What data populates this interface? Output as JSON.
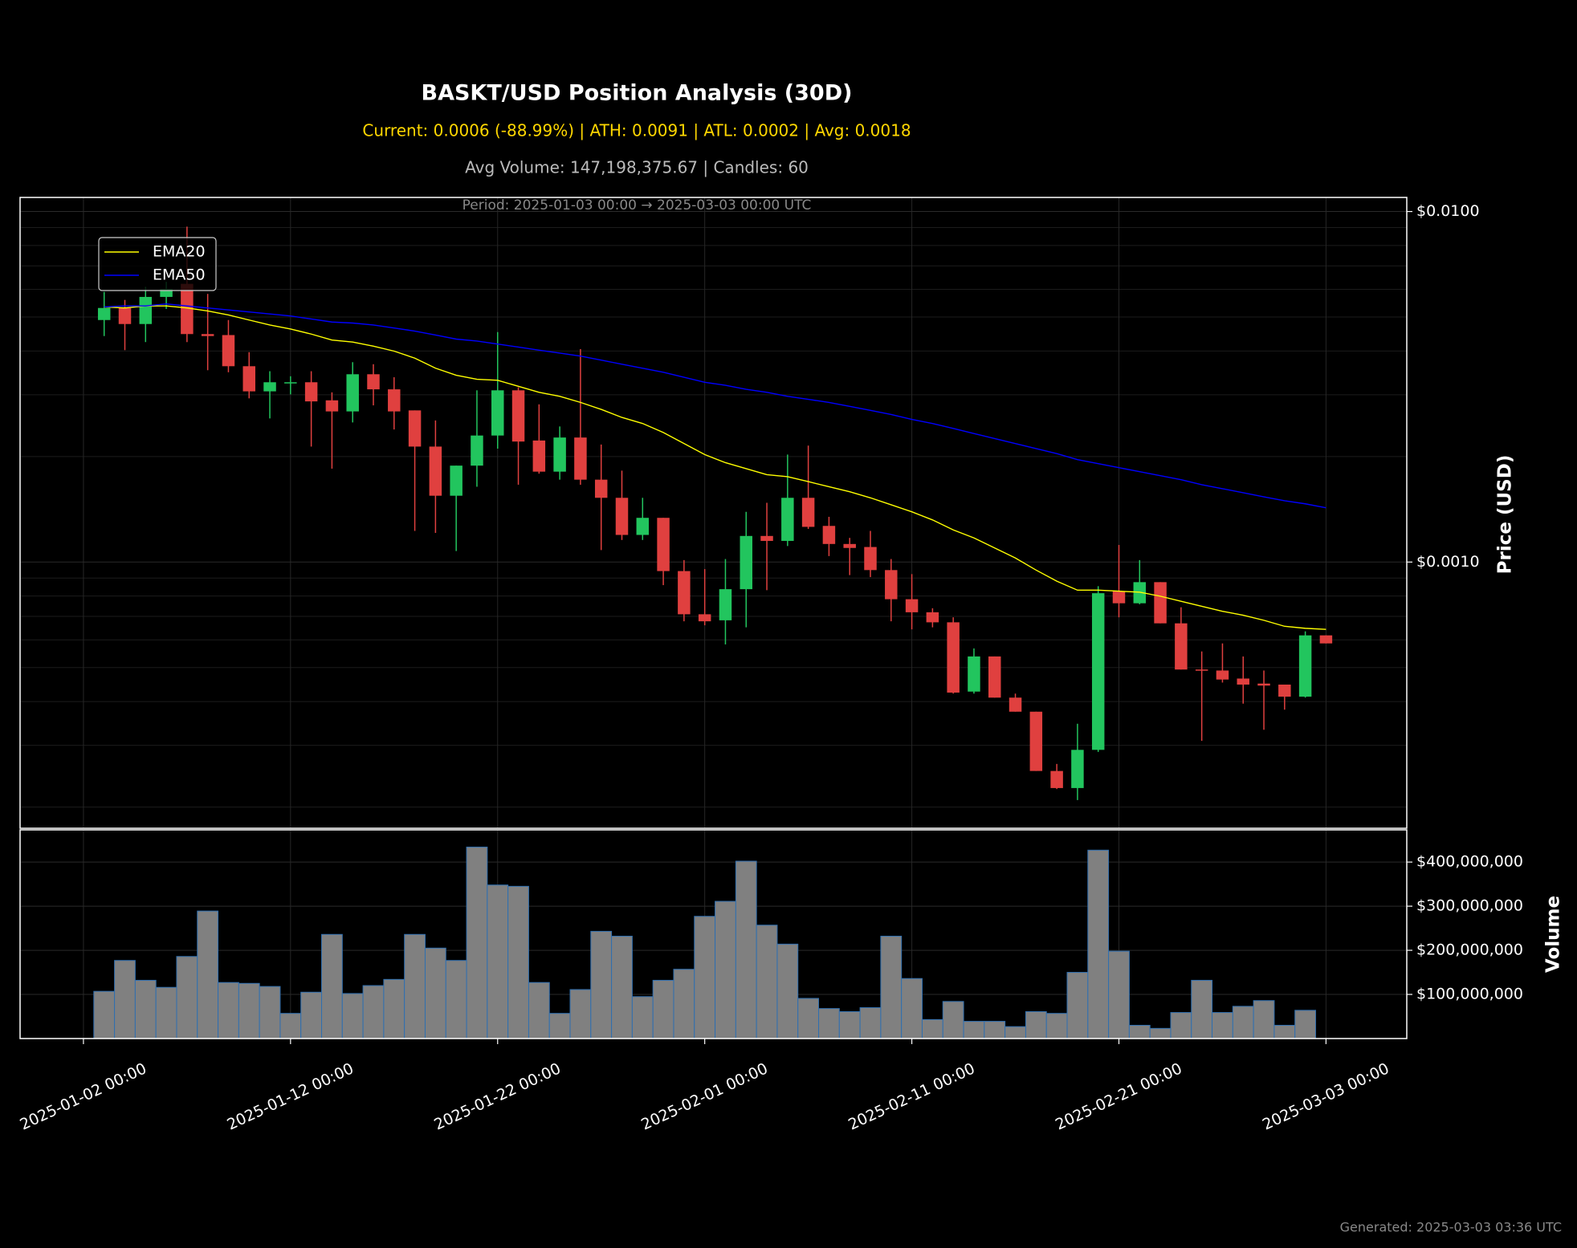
{
  "chart_data": [
    {
      "type": "candlestick",
      "title": "BASKT/USD Position Analysis (30D)",
      "subtitles": [
        "Current: 0.0006 (-88.99%) | ATH: 0.0091 | ATL: 0.0002 | Avg: 0.0018",
        "Avg Volume: 147,198,375.67 | Candles: 60"
      ],
      "annotation": "Period: 2025-01-03 00:00 → 2025-03-03 00:00 UTC",
      "y_label": "Price (USD)",
      "yscale": "log",
      "x": [
        "2025-01-03 00:00",
        "2025-01-04 00:00",
        "2025-01-05 00:00",
        "2025-01-06 00:00",
        "2025-01-07 00:00",
        "2025-01-08 00:00",
        "2025-01-09 00:00",
        "2025-01-10 00:00",
        "2025-01-11 00:00",
        "2025-01-12 00:00",
        "2025-01-13 00:00",
        "2025-01-14 00:00",
        "2025-01-15 00:00",
        "2025-01-16 00:00",
        "2025-01-17 00:00",
        "2025-01-18 00:00",
        "2025-01-19 00:00",
        "2025-01-20 00:00",
        "2025-01-21 00:00",
        "2025-01-22 00:00",
        "2025-01-23 00:00",
        "2025-01-24 00:00",
        "2025-01-25 00:00",
        "2025-01-26 00:00",
        "2025-01-27 00:00",
        "2025-01-28 00:00",
        "2025-01-29 00:00",
        "2025-01-30 00:00",
        "2025-01-31 00:00",
        "2025-02-01 00:00",
        "2025-02-02 00:00",
        "2025-02-03 00:00",
        "2025-02-04 00:00",
        "2025-02-05 00:00",
        "2025-02-06 00:00",
        "2025-02-07 00:00",
        "2025-02-08 00:00",
        "2025-02-09 00:00",
        "2025-02-10 00:00",
        "2025-02-11 00:00",
        "2025-02-12 00:00",
        "2025-02-13 00:00",
        "2025-02-14 00:00",
        "2025-02-15 00:00",
        "2025-02-16 00:00",
        "2025-02-17 00:00",
        "2025-02-18 00:00",
        "2025-02-19 00:00",
        "2025-02-20 00:00",
        "2025-02-21 00:00",
        "2025-02-22 00:00",
        "2025-02-23 00:00",
        "2025-02-24 00:00",
        "2025-02-25 00:00",
        "2025-02-26 00:00",
        "2025-02-27 00:00",
        "2025-02-28 00:00",
        "2025-03-01 00:00",
        "2025-03-02 00:00",
        "2025-03-03 00:00"
      ],
      "open": [
        0.004903,
        0.005307,
        0.004776,
        0.005707,
        0.006219,
        0.004471,
        0.004442,
        0.00362,
        0.003069,
        0.003236,
        0.003258,
        0.002893,
        0.00269,
        0.003434,
        0.00311,
        0.002708,
        0.002135,
        0.001546,
        0.001884,
        0.002296,
        0.00309,
        0.002222,
        0.001811,
        0.002266,
        0.001718,
        0.001525,
        0.001195,
        0.001337,
        0.0009424,
        0.0007096,
        0.0006821,
        0.0008368,
        0.001187,
        0.001149,
        0.001525,
        0.001268,
        0.001126,
        0.001104,
        0.0009486,
        0.0007834,
        0.000719,
        0.0006731,
        0.000427,
        0.0005379,
        0.0004104,
        0.0003742,
        0.0002535,
        0.0002266,
        0.0002912,
        0.0008259,
        0.0007628,
        0.0008763,
        0.0006686,
        0.0004936,
        0.0004904,
        0.0004652,
        0.0004501,
        0.0004471,
        0.000413,
        0.0006178
      ],
      "high": [
        0.005898,
        0.005596,
        0.006098,
        0.006302,
        0.009058,
        0.005821,
        0.004903,
        0.00397,
        0.003503,
        0.003389,
        0.003503,
        0.003049,
        0.003717,
        0.003668,
        0.003367,
        0.002708,
        0.002535,
        0.001884,
        0.00309,
        0.004531,
        0.003151,
        0.002818,
        0.002437,
        0.00405,
        0.002164,
        0.001823,
        0.001525,
        0.001337,
        0.001013,
        0.0009548,
        0.00102,
        0.001391,
        0.001476,
        0.002026,
        0.002149,
        0.001346,
        0.001172,
        0.001227,
        0.00102,
        0.0009239,
        0.0007383,
        0.0006956,
        0.000567,
        0.0005379,
        0.0004214,
        0.0003742,
        0.0002655,
        0.0003457,
        0.0008536,
        0.001119,
        0.001013,
        0.0008763,
        0.0007431,
        0.0005559,
        0.000586,
        0.0005379,
        0.0004904,
        0.0004471,
        0.0006343,
        0.0006178
      ],
      "low": [
        0.004413,
        0.004023,
        0.004242,
        0.005274,
        0.004242,
        0.003526,
        0.003479,
        0.002931,
        0.002569,
        0.003009,
        0.002135,
        0.001847,
        0.002502,
        0.002799,
        0.002389,
        0.001227,
        0.001211,
        0.001075,
        0.00164,
        0.002107,
        0.001662,
        0.001787,
        0.001718,
        0.001662,
        0.001082,
        0.001156,
        0.001156,
        0.0008593,
        0.0006776,
        0.00066,
        0.0005821,
        0.0006513,
        0.0008313,
        0.001111,
        0.001243,
        0.00104,
        0.0009178,
        0.0009059,
        0.0006776,
        0.0006427,
        0.0006513,
        0.0004214,
        0.0004214,
        0.0004104,
        0.0003742,
        0.0002535,
        0.0002251,
        0.0002094,
        0.0002874,
        0.0006956,
        0.0007579,
        0.0006686,
        0.0004936,
        0.000309,
        0.0004531,
        0.0003945,
        0.0003323,
        0.0003792,
        0.0004104,
        0.000586
      ],
      "close": [
        0.005307,
        0.004776,
        0.005707,
        0.006018,
        0.004471,
        0.004413,
        0.00362,
        0.003069,
        0.003258,
        0.003258,
        0.002873,
        0.00269,
        0.003434,
        0.00311,
        0.00269,
        0.002135,
        0.001546,
        0.001884,
        0.002296,
        0.00309,
        0.002207,
        0.001811,
        0.002266,
        0.001718,
        0.001525,
        0.001195,
        0.001337,
        0.0009424,
        0.0007096,
        0.0006776,
        0.0008368,
        0.001187,
        0.001149,
        0.001525,
        0.00126,
        0.001126,
        0.001097,
        0.0009486,
        0.0007834,
        0.000719,
        0.0006731,
        0.0004242,
        0.0005379,
        0.0004104,
        0.0003742,
        0.0002535,
        0.0002266,
        0.0002912,
        0.0008149,
        0.0007628,
        0.0008763,
        0.0006686,
        0.0004936,
        0.0004904,
        0.0004622,
        0.0004471,
        0.0004442,
        0.000413,
        0.0006178,
        0.000586
      ],
      "up_color": "#22c55e",
      "down_color": "#e0403f",
      "series": [
        {
          "name": "EMA20",
          "color": "#ffff00",
          "values": [
            0.005343,
            0.005307,
            0.005378,
            0.005378,
            0.005307,
            0.005204,
            0.005069,
            0.004903,
            0.004745,
            0.004622,
            0.004471,
            0.004298,
            0.004242,
            0.00413,
            0.003997,
            0.003817,
            0.003573,
            0.003412,
            0.003323,
            0.003301,
            0.003172,
            0.003049,
            0.00297,
            0.002854,
            0.002726,
            0.002586,
            0.002485,
            0.002342,
            0.002178,
            0.002026,
            0.001921,
            0.001847,
            0.001775,
            0.001752,
            0.001696,
            0.00164,
            0.001587,
            0.001525,
            0.001457,
            0.001391,
            0.001319,
            0.001235,
            0.001172,
            0.001097,
            0.001027,
            0.0009486,
            0.0008822,
            0.0008313,
            0.0008313,
            0.0008259,
            0.0008204,
            0.000799,
            0.000773,
            0.000748,
            0.0007237,
            0.000705,
            0.0006821,
            0.0006557,
            0.0006471,
            0.0006427
          ]
        },
        {
          "name": "EMA50",
          "color": "#0000ff",
          "values": [
            0.005343,
            0.005378,
            0.005378,
            0.00545,
            0.005378,
            0.005307,
            0.005239,
            0.00517,
            0.005102,
            0.005035,
            0.004936,
            0.004839,
            0.004807,
            0.004745,
            0.004652,
            0.00456,
            0.004442,
            0.004326,
            0.00427,
            0.004186,
            0.004104,
            0.004023,
            0.003945,
            0.003868,
            0.003767,
            0.003668,
            0.003573,
            0.003479,
            0.003367,
            0.003258,
            0.003193,
            0.00311,
            0.003049,
            0.00297,
            0.002912,
            0.002854,
            0.002781,
            0.002708,
            0.002637,
            0.002552,
            0.002485,
            0.002405,
            0.002326,
            0.002251,
            0.002178,
            0.002107,
            0.002039,
            0.00196,
            0.001909,
            0.001859,
            0.001811,
            0.001764,
            0.001718,
            0.001662,
            0.001619,
            0.001577,
            0.001535,
            0.001496,
            0.001466,
            0.001428
          ]
        }
      ],
      "legend": "upper left",
      "grid": true,
      "xlim": [
        "2024-12-29 22:34",
        "2025-03-06 21:36"
      ],
      "xticks": [
        "2025-01-02 00:00",
        "2025-01-12 00:00",
        "2025-01-22 00:00",
        "2025-02-01 00:00",
        "2025-02-11 00:00",
        "2025-02-21 00:00",
        "2025-03-03 00:00"
      ],
      "ylim": [
        0.000174,
        0.01097
      ],
      "yticks": [
        {
          "value": 0.01,
          "label": "$0.0100"
        },
        {
          "value": 0.001,
          "label": "$0.0010"
        }
      ],
      "yminorticks": [
        0.0002,
        0.0003,
        0.0004,
        0.0005,
        0.0006,
        0.0007,
        0.0008,
        0.0009,
        0.002,
        0.003,
        0.004,
        0.005,
        0.006,
        0.007,
        0.008,
        0.009
      ]
    },
    {
      "type": "bar",
      "y_label": "Volume",
      "values": [
        107000000,
        177000000,
        132000000,
        116000000,
        186000000,
        289000000,
        127000000,
        125000000,
        118000000,
        57000000,
        105000000,
        236000000,
        102000000,
        120000000,
        134000000,
        236000000,
        205000000,
        177000000,
        434000000,
        348000000,
        345000000,
        127000000,
        57000000,
        111000000,
        243000000,
        232000000,
        95000000,
        132000000,
        157000000,
        277000000,
        311000000,
        402000000,
        257000000,
        214000000,
        91000000,
        68000000,
        61000000,
        70000000,
        232000000,
        136000000,
        43000000,
        84000000,
        39000000,
        39000000,
        27000000,
        61000000,
        57000000,
        150000000,
        427000000,
        198000000,
        30000000,
        23000000,
        59000000,
        132000000,
        59000000,
        73000000,
        86000000,
        30000000,
        64000000,
        0
      ],
      "color": "#808080",
      "edgecolor": "#2f6fb0",
      "grid": true,
      "ylim": [
        0,
        473000000
      ],
      "yticks": [
        {
          "value": 100000000,
          "label": "$100,000,000"
        },
        {
          "value": 200000000,
          "label": "$200,000,000"
        },
        {
          "value": 300000000,
          "label": "$300,000,000"
        },
        {
          "value": 400000000,
          "label": "$400,000,000"
        }
      ]
    }
  ],
  "footer": "Generated: 2025-03-03 03:36 UTC"
}
